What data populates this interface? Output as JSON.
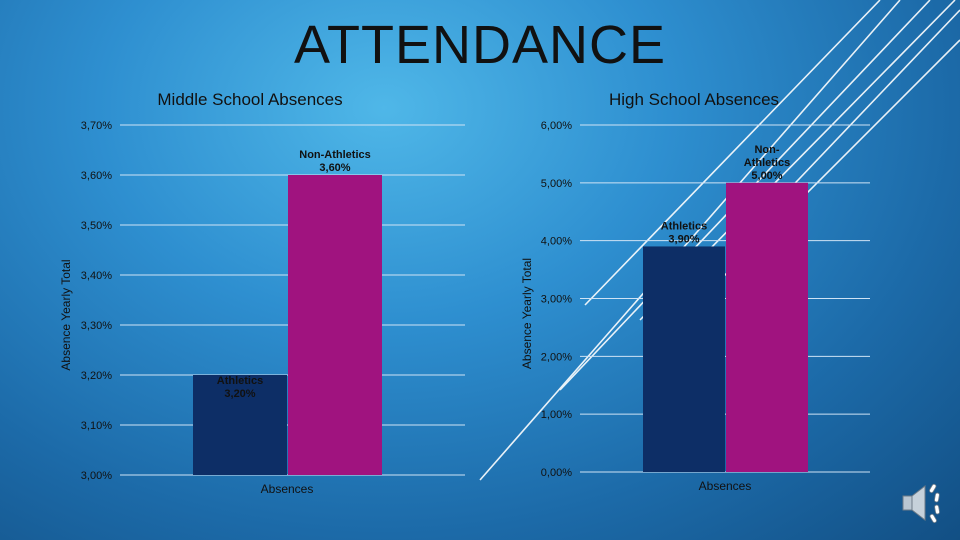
{
  "slide": {
    "title": "ATTENDANCE"
  },
  "colors": {
    "athletics": "#0d2e66",
    "non_athletics": "#a0137f",
    "text": "#111111",
    "grid": "#cfe3f5"
  },
  "icons": {
    "audio": "speaker-icon"
  },
  "chart_data": [
    {
      "type": "bar",
      "title": "Middle School Absences",
      "ylabel": "Absence Yearly Total",
      "xlabel": "",
      "categories": [
        "Absences"
      ],
      "ylim": [
        3.0,
        3.7
      ],
      "yticks": [
        3.0,
        3.1,
        3.2,
        3.3,
        3.4,
        3.5,
        3.6,
        3.7
      ],
      "ytick_labels": [
        "3,00%",
        "3,10%",
        "3,20%",
        "3,30%",
        "3,40%",
        "3,50%",
        "3,60%",
        "3,70%"
      ],
      "grid": true,
      "legend": "none",
      "series": [
        {
          "name": "Athletics",
          "values": [
            3.2
          ],
          "data_label": [
            "Athletics",
            "3,20%"
          ],
          "color": "#0d2e66"
        },
        {
          "name": "Non-Athletics",
          "values": [
            3.6
          ],
          "data_label": [
            "Non-Athletics",
            "3,60%"
          ],
          "color": "#a0137f"
        }
      ]
    },
    {
      "type": "bar",
      "title": "High School Absences",
      "ylabel": "Absence Yearly Total",
      "xlabel": "",
      "categories": [
        "Absences"
      ],
      "ylim": [
        0.0,
        6.0
      ],
      "yticks": [
        0,
        1,
        2,
        3,
        4,
        5,
        6
      ],
      "ytick_labels": [
        "0,00%",
        "1,00%",
        "2,00%",
        "3,00%",
        "4,00%",
        "5,00%",
        "6,00%"
      ],
      "grid": true,
      "legend": "none",
      "series": [
        {
          "name": "Athletics",
          "values": [
            3.9
          ],
          "data_label": [
            "Athletics",
            "3,90%"
          ],
          "color": "#0d2e66"
        },
        {
          "name": "Non-Athletics",
          "values": [
            5.0
          ],
          "data_label": [
            "Non-",
            "Athletics",
            "5,00%"
          ],
          "color": "#a0137f"
        }
      ]
    }
  ]
}
